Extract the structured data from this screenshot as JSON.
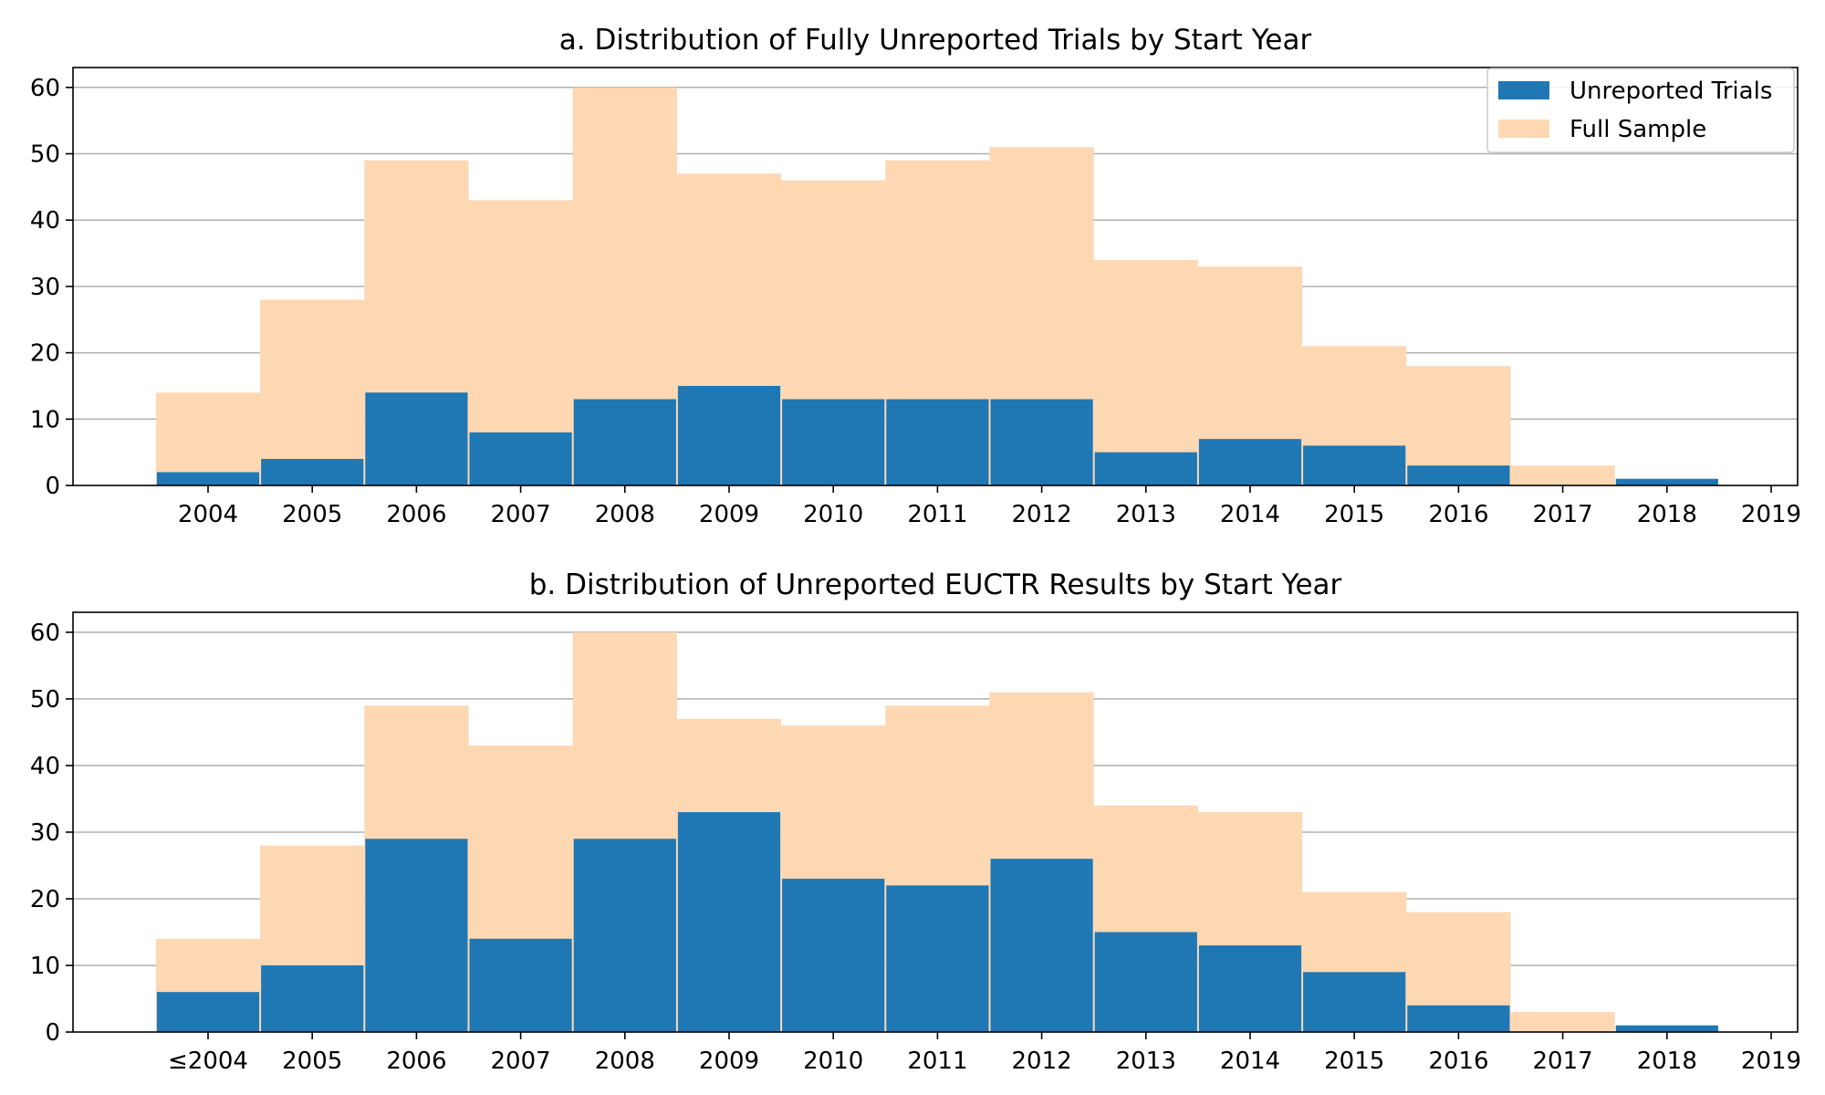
{
  "colors": {
    "unreported": "#1f77b4",
    "full_sample": "#fdd8b3",
    "grid": "#b0b0b0",
    "axis": "#000000"
  },
  "legend": {
    "unreported_label": "Unreported Trials",
    "full_label": "Full Sample"
  },
  "chart_data": [
    {
      "type": "bar",
      "title": "a. Distribution of Fully Unreported Trials by Start Year",
      "xlabel": "",
      "ylabel": "",
      "categories": [
        "2004",
        "2005",
        "2006",
        "2007",
        "2008",
        "2009",
        "2010",
        "2011",
        "2012",
        "2013",
        "2014",
        "2015",
        "2016",
        "2017",
        "2018"
      ],
      "x_tick_labels": [
        "2004",
        "2005",
        "2006",
        "2007",
        "2008",
        "2009",
        "2010",
        "2011",
        "2012",
        "2013",
        "2014",
        "2015",
        "2016",
        "2017",
        "2018",
        "2019"
      ],
      "y_ticks": [
        0,
        10,
        20,
        30,
        40,
        50,
        60
      ],
      "ylim": [
        0,
        63
      ],
      "grid": true,
      "legend_position": "top-right",
      "series": [
        {
          "name": "Full Sample",
          "values": [
            14,
            28,
            49,
            43,
            60,
            47,
            46,
            49,
            51,
            34,
            33,
            21,
            18,
            3,
            0
          ]
        },
        {
          "name": "Unreported Trials",
          "values": [
            2,
            4,
            14,
            8,
            13,
            15,
            13,
            13,
            13,
            5,
            7,
            6,
            3,
            0,
            1
          ]
        }
      ]
    },
    {
      "type": "bar",
      "title": "b. Distribution of Unreported EUCTR Results by Start Year",
      "xlabel": "",
      "ylabel": "",
      "categories": [
        "≤2004",
        "2005",
        "2006",
        "2007",
        "2008",
        "2009",
        "2010",
        "2011",
        "2012",
        "2013",
        "2014",
        "2015",
        "2016",
        "2017",
        "2018"
      ],
      "x_tick_labels": [
        "≤2004",
        "2005",
        "2006",
        "2007",
        "2008",
        "2009",
        "2010",
        "2011",
        "2012",
        "2013",
        "2014",
        "2015",
        "2016",
        "2017",
        "2018",
        "2019"
      ],
      "y_ticks": [
        0,
        10,
        20,
        30,
        40,
        50,
        60
      ],
      "ylim": [
        0,
        63
      ],
      "grid": true,
      "legend_position": "none",
      "series": [
        {
          "name": "Full Sample",
          "values": [
            14,
            28,
            49,
            43,
            60,
            47,
            46,
            49,
            51,
            34,
            33,
            21,
            18,
            3,
            0
          ]
        },
        {
          "name": "Unreported Trials",
          "values": [
            6,
            10,
            29,
            14,
            29,
            33,
            23,
            22,
            26,
            15,
            13,
            9,
            4,
            0,
            1
          ]
        }
      ]
    }
  ]
}
